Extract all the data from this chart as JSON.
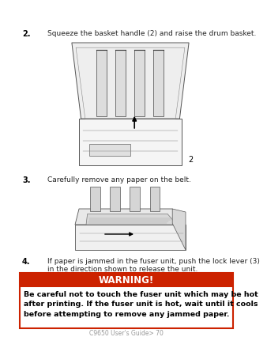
{
  "bg_color": "#ffffff",
  "step2_number": "2.",
  "step2_text": "Squeeze the basket handle (2) and raise the drum basket.",
  "step3_number": "3.",
  "step3_text": "Carefully remove any paper on the belt.",
  "step4_number": "4.",
  "step4_text_line1": "If paper is jammed in the fuser unit, push the lock lever (3)",
  "step4_text_line2": "in the direction shown to release the unit.",
  "warning_title": "WARNING!",
  "warning_body": "Be careful not to touch the fuser unit which may be hot\nafter printing. If the fuser unit is hot, wait until it cools\nbefore attempting to remove any jammed paper.",
  "warning_header_bg": "#cc2200",
  "warning_header_text_color": "#ffffff",
  "warning_border_color": "#cc2200",
  "footer_text": "C9650 User's Guide> 70",
  "footer_color": "#999999",
  "text_color": "#222222",
  "number_color": "#000000",
  "label2": "2",
  "font_size_step": 6.5,
  "font_size_number": 7.0,
  "font_size_warning_title": 8.5,
  "font_size_warning_body": 6.8,
  "font_size_footer": 5.5
}
